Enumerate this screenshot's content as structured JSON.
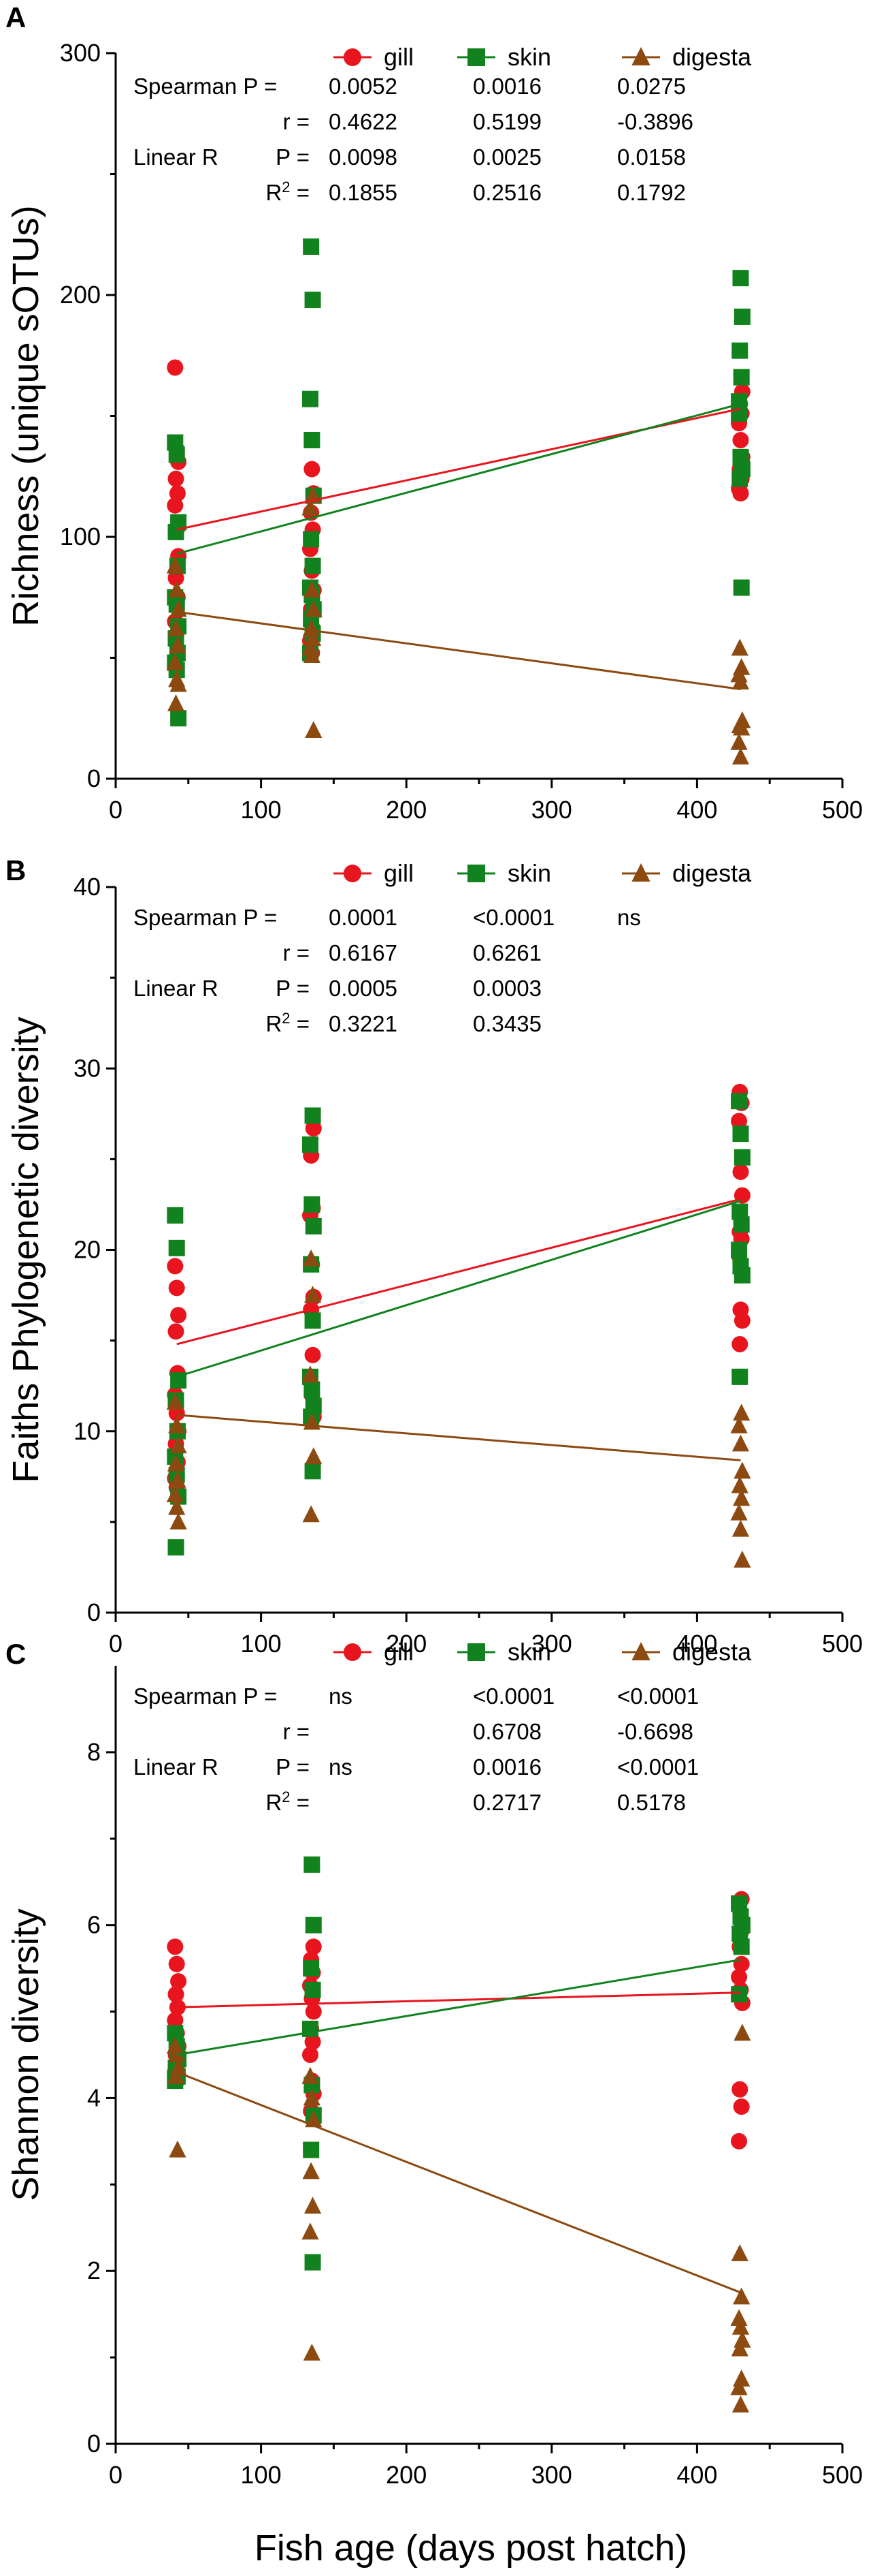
{
  "figure": {
    "x_axis_title": "Fish age (days post hatch)"
  },
  "colors": {
    "gill": "#e8141e",
    "skin": "#11821e",
    "digesta": "#8c4a11"
  },
  "chart_data": [
    {
      "type": "scatter",
      "panel_label": "A",
      "ylabel": "Richness (unique sOTUs)",
      "xlabel": "Fish age (days post hatch)",
      "xlim": [
        0,
        500
      ],
      "ylim": [
        0,
        300
      ],
      "x_ticks": [
        "0",
        "100",
        "200",
        "300",
        "400",
        "500"
      ],
      "y_ticks": [
        "0",
        "100",
        "200",
        "300"
      ],
      "legend": [
        "gill",
        "skin",
        "digesta"
      ],
      "series": [
        {
          "name": "gill",
          "marker": "circle",
          "x": [
            42,
            42,
            42,
            42,
            42,
            42,
            42,
            42,
            42,
            42,
            42,
            135,
            135,
            135,
            135,
            135,
            135,
            135,
            135,
            135,
            135,
            135,
            430,
            430,
            430,
            430,
            430,
            430,
            430,
            430,
            430,
            430
          ],
          "y": [
            170,
            136,
            131,
            124,
            118,
            113,
            103,
            92,
            83,
            75,
            65,
            128,
            118,
            110,
            103,
            95,
            86,
            78,
            70,
            62,
            57,
            52,
            160,
            155,
            151,
            147,
            140,
            133,
            128,
            124,
            120,
            118
          ],
          "fit": {
            "x": [
              42,
              430
            ],
            "y": [
              103,
              153
            ]
          }
        },
        {
          "name": "skin",
          "marker": "square",
          "x": [
            42,
            42,
            42,
            42,
            42,
            42,
            42,
            42,
            42,
            42,
            42,
            42,
            42,
            135,
            135,
            135,
            135,
            135,
            135,
            135,
            135,
            135,
            135,
            135,
            135,
            135,
            430,
            430,
            430,
            430,
            430,
            430,
            430,
            430,
            430,
            430
          ],
          "y": [
            139,
            134,
            106,
            102,
            88,
            75,
            72,
            63,
            58,
            52,
            48,
            45,
            25,
            220,
            198,
            157,
            140,
            117,
            99,
            88,
            79,
            76,
            70,
            66,
            60,
            52,
            207,
            191,
            177,
            166,
            151,
            133,
            128,
            124,
            79,
            156
          ],
          "fit": {
            "x": [
              42,
              430
            ],
            "y": [
              93,
              155
            ]
          }
        },
        {
          "name": "digesta",
          "marker": "triangle",
          "x": [
            42,
            42,
            42,
            42,
            42,
            42,
            42,
            42,
            42,
            135,
            135,
            135,
            135,
            135,
            135,
            135,
            135,
            135,
            430,
            430,
            430,
            430,
            430,
            430,
            430,
            430,
            430
          ],
          "y": [
            88,
            78,
            70,
            62,
            55,
            48,
            41,
            39,
            31,
            117,
            112,
            78,
            70,
            62,
            58,
            54,
            51,
            20,
            54,
            46,
            43,
            40,
            24,
            22,
            21,
            15,
            9
          ],
          "fit": {
            "x": [
              42,
              430
            ],
            "y": [
              69,
              37
            ]
          }
        }
      ],
      "stats": {
        "spearman_label": "Spearman P =",
        "r_label": "r =",
        "linear_label": "Linear R",
        "p_label": "P =",
        "r2_label": "R",
        "r2_sup": "2",
        "r2_eq": "=",
        "spearman_p": [
          "0.0052",
          "0.0016",
          "0.0275"
        ],
        "spearman_r": [
          "0.4622",
          "0.5199",
          "-0.3896"
        ],
        "linear_p": [
          "0.0098",
          "0.0025",
          "0.0158"
        ],
        "r2": [
          "0.1855",
          "0.2516",
          "0.1792"
        ]
      }
    },
    {
      "type": "scatter",
      "panel_label": "B",
      "ylabel": "Faiths Phylogenetic diversity",
      "xlabel": "Fish age (days post hatch)",
      "xlim": [
        0,
        500
      ],
      "ylim": [
        0,
        40
      ],
      "x_ticks": [
        "0",
        "100",
        "200",
        "300",
        "400",
        "500"
      ],
      "y_ticks": [
        "0",
        "10",
        "20",
        "30",
        "40"
      ],
      "legend": [
        "gill",
        "skin",
        "digesta"
      ],
      "series": [
        {
          "name": "gill",
          "marker": "circle",
          "x": [
            42,
            42,
            42,
            42,
            42,
            42,
            42,
            42,
            42,
            42,
            42,
            42,
            135,
            135,
            135,
            135,
            135,
            135,
            135,
            135,
            135,
            135,
            135,
            430,
            430,
            430,
            430,
            430,
            430,
            430,
            430,
            430,
            430,
            430
          ],
          "y": [
            19.1,
            17.9,
            16.4,
            15.5,
            13.2,
            12.0,
            11.0,
            10.0,
            9.3,
            8.3,
            7.4,
            6.9,
            26.7,
            25.2,
            22.3,
            21.9,
            19.2,
            17.4,
            16.7,
            14.2,
            13.0,
            12.0,
            10.8,
            28.7,
            28.1,
            27.1,
            24.3,
            23.0,
            21.0,
            20.6,
            19.7,
            16.7,
            16.1,
            14.8
          ],
          "fit": {
            "x": [
              42,
              430
            ],
            "y": [
              14.8,
              22.8
            ]
          }
        },
        {
          "name": "skin",
          "marker": "square",
          "x": [
            42,
            42,
            42,
            42,
            42,
            42,
            42,
            42,
            42,
            135,
            135,
            135,
            135,
            135,
            135,
            135,
            135,
            135,
            135,
            135,
            430,
            430,
            430,
            430,
            430,
            430,
            430,
            430,
            430
          ],
          "y": [
            21.9,
            20.1,
            12.8,
            11.7,
            10.0,
            8.6,
            7.6,
            6.4,
            3.6,
            27.4,
            25.8,
            22.5,
            21.3,
            19.2,
            16.1,
            13.0,
            12.3,
            11.4,
            10.8,
            7.8,
            28.2,
            26.4,
            25.1,
            22.1,
            21.4,
            20.0,
            19.1,
            18.6,
            13.0
          ],
          "fit": {
            "x": [
              42,
              430
            ],
            "y": [
              13.0,
              22.7
            ]
          }
        },
        {
          "name": "digesta",
          "marker": "triangle",
          "x": [
            42,
            42,
            42,
            42,
            42,
            42,
            42,
            42,
            135,
            135,
            135,
            135,
            135,
            135,
            430,
            430,
            430,
            430,
            430,
            430,
            430,
            430,
            430
          ],
          "y": [
            11.6,
            10.3,
            9.2,
            8.2,
            7.3,
            6.5,
            5.8,
            5.0,
            19.5,
            17.5,
            13.1,
            10.5,
            8.6,
            5.4,
            11.0,
            10.3,
            9.3,
            7.8,
            7.0,
            6.3,
            5.5,
            4.6,
            2.9
          ],
          "fit": {
            "x": [
              42,
              430
            ],
            "y": [
              10.9,
              8.4
            ]
          }
        }
      ],
      "stats": {
        "spearman_label": "Spearman P =",
        "r_label": "r =",
        "linear_label": "Linear R",
        "p_label": "P =",
        "r2_label": "R",
        "r2_sup": "2",
        "r2_eq": "=",
        "spearman_p": [
          "0.0001",
          "<0.0001",
          "ns"
        ],
        "spearman_r": [
          "0.6167",
          "0.6261",
          ""
        ],
        "linear_p": [
          "0.0005",
          "0.0003",
          ""
        ],
        "r2": [
          "0.3221",
          "0.3435",
          ""
        ]
      }
    },
    {
      "type": "scatter",
      "panel_label": "C",
      "ylabel": "Shannon diversity",
      "xlabel": "Fish age (days post hatch)",
      "xlim": [
        0,
        500
      ],
      "ylim": [
        0,
        9
      ],
      "x_ticks": [
        "0",
        "100",
        "200",
        "300",
        "400",
        "500"
      ],
      "y_ticks": [
        "0",
        "2",
        "4",
        "6",
        "8"
      ],
      "legend": [
        "gill",
        "skin",
        "digesta"
      ],
      "series": [
        {
          "name": "gill",
          "marker": "circle",
          "x": [
            42,
            42,
            42,
            42,
            42,
            42,
            42,
            42,
            42,
            42,
            42,
            42,
            135,
            135,
            135,
            135,
            135,
            135,
            135,
            135,
            135,
            135,
            135,
            135,
            430,
            430,
            430,
            430,
            430,
            430,
            430,
            430,
            430,
            430,
            430,
            430
          ],
          "y": [
            5.75,
            5.55,
            5.35,
            5.2,
            5.05,
            4.9,
            4.75,
            4.6,
            4.5,
            4.4,
            4.3,
            4.2,
            5.75,
            5.6,
            5.45,
            5.3,
            5.15,
            5.0,
            4.8,
            4.65,
            4.5,
            4.2,
            4.05,
            3.85,
            6.3,
            6.2,
            6.1,
            5.95,
            5.75,
            5.55,
            5.4,
            5.25,
            5.1,
            4.1,
            3.9,
            3.5
          ],
          "fit": {
            "x": [
              42,
              430
            ],
            "y": [
              5.05,
              5.22
            ]
          }
        },
        {
          "name": "skin",
          "marker": "square",
          "x": [
            42,
            42,
            42,
            42,
            42,
            42,
            135,
            135,
            135,
            135,
            135,
            135,
            135,
            135,
            135,
            430,
            430,
            430,
            430,
            430,
            430
          ],
          "y": [
            4.75,
            4.6,
            4.45,
            4.35,
            4.25,
            4.2,
            6.7,
            6.0,
            5.5,
            5.25,
            4.8,
            4.15,
            3.8,
            3.4,
            2.1,
            6.25,
            6.1,
            6.0,
            5.9,
            5.75,
            5.2
          ],
          "fit": {
            "x": [
              42,
              430
            ],
            "y": [
              4.5,
              5.6
            ]
          }
        },
        {
          "name": "digesta",
          "marker": "triangle",
          "x": [
            42,
            42,
            42,
            42,
            42,
            135,
            135,
            135,
            135,
            135,
            135,
            135,
            430,
            430,
            430,
            430,
            430,
            430,
            430,
            430,
            430,
            430
          ],
          "y": [
            4.6,
            4.5,
            4.35,
            4.25,
            3.4,
            4.25,
            4.0,
            3.75,
            3.15,
            2.75,
            2.45,
            1.05,
            4.75,
            2.2,
            1.7,
            1.45,
            1.35,
            1.2,
            1.1,
            0.75,
            0.65,
            0.45
          ],
          "fit": {
            "x": [
              42,
              430
            ],
            "y": [
              4.3,
              1.75
            ]
          }
        }
      ],
      "stats": {
        "spearman_label": "Spearman P =",
        "r_label": "r =",
        "linear_label": "Linear R",
        "p_label": "P =",
        "r2_label": "R",
        "r2_sup": "2",
        "r2_eq": "=",
        "spearman_p": [
          "ns",
          "<0.0001",
          "<0.0001"
        ],
        "spearman_r": [
          "",
          "0.6708",
          "-0.6698"
        ],
        "linear_p": [
          "ns",
          "0.0016",
          "<0.0001"
        ],
        "r2": [
          "",
          "0.2717",
          "0.5178"
        ]
      }
    }
  ]
}
